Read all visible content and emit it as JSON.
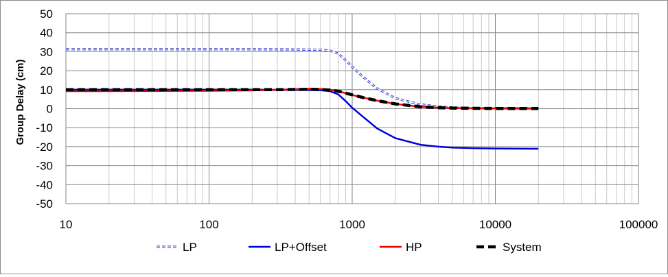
{
  "chart_data": {
    "type": "line",
    "x_scale": "log",
    "xlim": [
      10,
      100000
    ],
    "ylim": [
      -50,
      50
    ],
    "x_ticks": [
      10,
      100,
      1000,
      10000,
      100000
    ],
    "x_tick_labels": [
      "10",
      "100",
      "1000",
      "10000",
      "100000"
    ],
    "y_ticks": [
      50,
      40,
      30,
      20,
      10,
      0,
      -10,
      -20,
      -30,
      -40,
      -50
    ],
    "y_tick_labels": [
      "50",
      "40",
      "30",
      "20",
      "10",
      "0",
      "-10",
      "-20",
      "-30",
      "-40",
      "-50"
    ],
    "xlabel": "",
    "ylabel": "Group Delay (cm)",
    "grid": true,
    "legend_position": "bottom",
    "series": [
      {
        "name": "LP",
        "color": "#3333cc",
        "style": "double-dashed",
        "x": [
          10,
          50,
          100,
          200,
          400,
          600,
          700,
          800,
          900,
          1000,
          1200,
          1500,
          2000,
          3000,
          4000,
          5000,
          7000,
          10000,
          20000
        ],
        "y": [
          31.3,
          31.3,
          31.3,
          31.3,
          31.2,
          31.0,
          30.5,
          29.0,
          25.5,
          22.0,
          16.5,
          10.5,
          5.5,
          2.2,
          1.1,
          0.6,
          0.3,
          0.2,
          0.1
        ]
      },
      {
        "name": "LP+Offset",
        "color": "#0000dd",
        "style": "solid",
        "x": [
          10,
          50,
          100,
          200,
          400,
          600,
          700,
          800,
          900,
          1000,
          1200,
          1500,
          2000,
          3000,
          4000,
          5000,
          7000,
          10000,
          20000
        ],
        "y": [
          10.0,
          10.0,
          10.0,
          10.0,
          9.9,
          9.7,
          9.2,
          7.5,
          4.0,
          0.5,
          -4.5,
          -10.5,
          -15.5,
          -19.0,
          -20.0,
          -20.5,
          -20.8,
          -21.0,
          -21.1
        ]
      },
      {
        "name": "HP",
        "color": "#ee0000",
        "style": "solid",
        "x": [
          10,
          50,
          100,
          200,
          300,
          400,
          500,
          600,
          700,
          800,
          1000,
          1200,
          1500,
          2000,
          3000,
          4000,
          5000,
          7000,
          10000,
          20000
        ],
        "y": [
          9.2,
          9.3,
          9.4,
          9.6,
          9.9,
          10.3,
          10.5,
          10.4,
          10.0,
          9.2,
          7.2,
          5.8,
          4.2,
          2.5,
          1.0,
          0.5,
          0.3,
          0.2,
          0.1,
          0.1
        ]
      },
      {
        "name": "System",
        "color": "#000000",
        "style": "dashed",
        "x": [
          10,
          50,
          100,
          200,
          300,
          400,
          500,
          600,
          700,
          800,
          1000,
          1200,
          1500,
          2000,
          3000,
          4000,
          5000,
          7000,
          10000,
          20000
        ],
        "y": [
          10.0,
          10.0,
          10.0,
          10.0,
          10.0,
          10.1,
          10.2,
          10.1,
          9.8,
          9.2,
          7.3,
          5.8,
          4.2,
          2.5,
          1.0,
          0.5,
          0.3,
          0.2,
          0.1,
          0.1
        ]
      }
    ]
  }
}
